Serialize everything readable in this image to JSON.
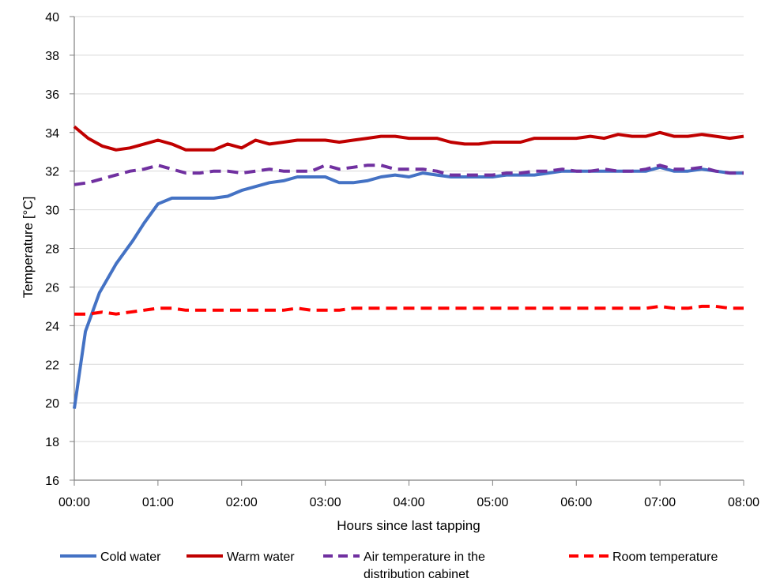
{
  "chart_data": {
    "type": "line",
    "xlabel": "Hours since last tapping",
    "ylabel": "Temperature [°C]",
    "xlim": [
      0,
      480
    ],
    "ylim": [
      16,
      40
    ],
    "x_ticks": [
      {
        "value": 0,
        "label": "00:00"
      },
      {
        "value": 60,
        "label": "01:00"
      },
      {
        "value": 120,
        "label": "02:00"
      },
      {
        "value": 180,
        "label": "03:00"
      },
      {
        "value": 240,
        "label": "04:00"
      },
      {
        "value": 300,
        "label": "05:00"
      },
      {
        "value": 360,
        "label": "06:00"
      },
      {
        "value": 420,
        "label": "07:00"
      },
      {
        "value": 480,
        "label": "08:00"
      }
    ],
    "y_ticks": [
      16,
      18,
      20,
      22,
      24,
      26,
      28,
      30,
      32,
      34,
      36,
      38,
      40
    ],
    "grid": "horizontal",
    "legend_position": "bottom",
    "series": [
      {
        "name": "Cold water",
        "color": "#4472C4",
        "dash": "solid",
        "x": [
          0,
          8,
          18,
          30,
          42,
          50,
          60,
          70,
          80,
          90,
          100,
          110,
          120,
          130,
          140,
          150,
          160,
          170,
          180,
          190,
          200,
          210,
          220,
          230,
          240,
          250,
          260,
          270,
          280,
          290,
          300,
          310,
          320,
          330,
          340,
          350,
          360,
          370,
          380,
          390,
          400,
          410,
          420,
          430,
          440,
          450,
          460,
          470,
          480
        ],
        "values": [
          19.7,
          23.7,
          25.7,
          27.2,
          28.4,
          29.3,
          30.3,
          30.6,
          30.6,
          30.6,
          30.6,
          30.7,
          31.0,
          31.2,
          31.4,
          31.5,
          31.7,
          31.7,
          31.7,
          31.4,
          31.4,
          31.5,
          31.7,
          31.8,
          31.7,
          31.9,
          31.8,
          31.7,
          31.7,
          31.7,
          31.7,
          31.8,
          31.8,
          31.8,
          31.9,
          32.0,
          32.0,
          32.0,
          32.0,
          32.0,
          32.0,
          32.0,
          32.2,
          32.0,
          32.0,
          32.1,
          32.0,
          31.9,
          31.9
        ]
      },
      {
        "name": "Warm water",
        "color": "#C00000",
        "dash": "solid",
        "x": [
          0,
          10,
          20,
          30,
          40,
          50,
          60,
          70,
          80,
          90,
          100,
          110,
          120,
          130,
          140,
          150,
          160,
          170,
          180,
          190,
          200,
          210,
          220,
          230,
          240,
          250,
          260,
          270,
          280,
          290,
          300,
          310,
          320,
          330,
          340,
          350,
          360,
          370,
          380,
          390,
          400,
          410,
          420,
          430,
          440,
          450,
          460,
          470,
          480
        ],
        "values": [
          34.3,
          33.7,
          33.3,
          33.1,
          33.2,
          33.4,
          33.6,
          33.4,
          33.1,
          33.1,
          33.1,
          33.4,
          33.2,
          33.6,
          33.4,
          33.5,
          33.6,
          33.6,
          33.6,
          33.5,
          33.6,
          33.7,
          33.8,
          33.8,
          33.7,
          33.7,
          33.7,
          33.5,
          33.4,
          33.4,
          33.5,
          33.5,
          33.5,
          33.7,
          33.7,
          33.7,
          33.7,
          33.8,
          33.7,
          33.9,
          33.8,
          33.8,
          34.0,
          33.8,
          33.8,
          33.9,
          33.8,
          33.7,
          33.8
        ]
      },
      {
        "name": "Air temperature in the distribution cabinet",
        "legend_lines": [
          "Air temperature in the",
          "distribution cabinet"
        ],
        "color": "#7030A0",
        "dash": "dashed",
        "x": [
          0,
          10,
          20,
          30,
          40,
          50,
          60,
          70,
          80,
          90,
          100,
          110,
          120,
          130,
          140,
          150,
          160,
          170,
          180,
          190,
          200,
          210,
          220,
          230,
          240,
          250,
          260,
          270,
          280,
          290,
          300,
          310,
          320,
          330,
          340,
          350,
          360,
          370,
          380,
          390,
          400,
          410,
          420,
          430,
          440,
          450,
          460,
          470,
          480
        ],
        "values": [
          31.3,
          31.4,
          31.6,
          31.8,
          32.0,
          32.1,
          32.3,
          32.1,
          31.9,
          31.9,
          32.0,
          32.0,
          31.9,
          32.0,
          32.1,
          32.0,
          32.0,
          32.0,
          32.3,
          32.1,
          32.2,
          32.3,
          32.3,
          32.1,
          32.1,
          32.1,
          32.0,
          31.8,
          31.8,
          31.8,
          31.8,
          31.9,
          31.9,
          32.0,
          32.0,
          32.1,
          32.0,
          32.0,
          32.1,
          32.0,
          32.0,
          32.1,
          32.3,
          32.1,
          32.1,
          32.2,
          32.0,
          31.9,
          31.9
        ]
      },
      {
        "name": "Room temperature",
        "color": "#FF0000",
        "dash": "dashed",
        "x": [
          0,
          10,
          20,
          30,
          40,
          50,
          60,
          70,
          80,
          90,
          100,
          110,
          120,
          130,
          140,
          150,
          160,
          170,
          180,
          190,
          200,
          210,
          220,
          230,
          240,
          250,
          260,
          270,
          280,
          290,
          300,
          310,
          320,
          330,
          340,
          350,
          360,
          370,
          380,
          390,
          400,
          410,
          420,
          430,
          440,
          450,
          460,
          470,
          480
        ],
        "values": [
          24.6,
          24.6,
          24.7,
          24.6,
          24.7,
          24.8,
          24.9,
          24.9,
          24.8,
          24.8,
          24.8,
          24.8,
          24.8,
          24.8,
          24.8,
          24.8,
          24.9,
          24.8,
          24.8,
          24.8,
          24.9,
          24.9,
          24.9,
          24.9,
          24.9,
          24.9,
          24.9,
          24.9,
          24.9,
          24.9,
          24.9,
          24.9,
          24.9,
          24.9,
          24.9,
          24.9,
          24.9,
          24.9,
          24.9,
          24.9,
          24.9,
          24.9,
          25.0,
          24.9,
          24.9,
          25.0,
          25.0,
          24.9,
          24.9
        ]
      }
    ]
  }
}
